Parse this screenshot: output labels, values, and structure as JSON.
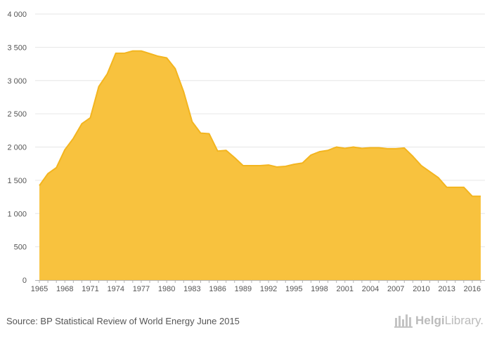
{
  "chart_data": {
    "type": "area",
    "series": [
      {
        "name": "",
        "x": [
          1965,
          1966,
          1967,
          1968,
          1969,
          1970,
          1971,
          1972,
          1973,
          1974,
          1975,
          1976,
          1977,
          1978,
          1979,
          1980,
          1981,
          1982,
          1983,
          1984,
          1985,
          1986,
          1987,
          1988,
          1989,
          1990,
          1991,
          1992,
          1993,
          1994,
          1995,
          1996,
          1997,
          1998,
          1999,
          2000,
          2001,
          2002,
          2003,
          2004,
          2005,
          2006,
          2007,
          2008,
          2009,
          2010,
          2011,
          2012,
          2013,
          2014,
          2015,
          2016,
          2017
        ],
        "values": [
          1420,
          1600,
          1690,
          1960,
          2130,
          2350,
          2440,
          2910,
          3100,
          3410,
          3410,
          3445,
          3445,
          3405,
          3365,
          3340,
          3180,
          2830,
          2380,
          2210,
          2200,
          1940,
          1950,
          1840,
          1720,
          1720,
          1720,
          1730,
          1700,
          1710,
          1740,
          1760,
          1880,
          1930,
          1950,
          2000,
          1980,
          2000,
          1980,
          1990,
          1990,
          1975,
          1975,
          1985,
          1860,
          1720,
          1630,
          1540,
          1395,
          1395,
          1395,
          1260,
          1260
        ]
      }
    ],
    "x_tick_labels": [
      "1965",
      "1968",
      "1971",
      "1974",
      "1977",
      "1980",
      "1983",
      "1986",
      "1989",
      "1992",
      "1995",
      "1998",
      "2001",
      "2004",
      "2007",
      "2010",
      "2013",
      "2016"
    ],
    "y_tick_labels": [
      "0",
      "500",
      "1 000",
      "1 500",
      "2 000",
      "2 500",
      "3 000",
      "3 500",
      "4 000"
    ],
    "ylim": [
      0,
      4000
    ],
    "xlim": [
      1964.5,
      2017.5
    ],
    "title": "",
    "xlabel": "",
    "ylabel": "",
    "grid": true,
    "fill_color": "#f8c23e",
    "line_color": "#f3b51f",
    "grid_color": "#e6e6e6",
    "axis_color": "#b0b0b0",
    "label_color": "#555555"
  },
  "footer": {
    "source": "Source: BP Statistical Review of World Energy June 2015",
    "brand_name": "Helgi",
    "brand_suffix": "Library."
  }
}
